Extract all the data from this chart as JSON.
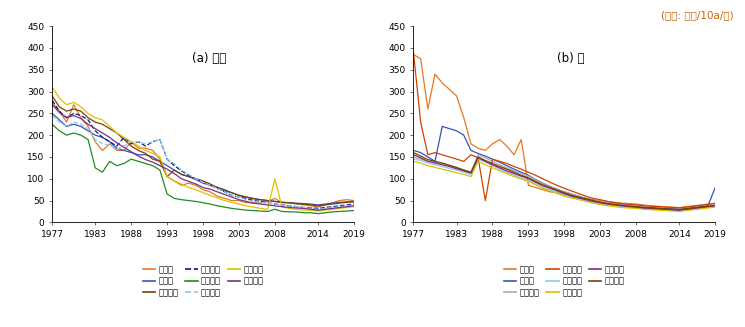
{
  "title_unit": "(단위: 시간/10a/연)",
  "subtitle_a": "(a) 사과",
  "subtitle_b": "(b) 배",
  "years": [
    1977,
    1978,
    1979,
    1980,
    1981,
    1982,
    1983,
    1984,
    1985,
    1986,
    1987,
    1988,
    1989,
    1990,
    1991,
    1992,
    1993,
    1994,
    1995,
    1996,
    1997,
    1998,
    1999,
    2000,
    2001,
    2002,
    2003,
    2004,
    2005,
    2006,
    2007,
    2008,
    2009,
    2010,
    2011,
    2012,
    2013,
    2014,
    2015,
    2016,
    2017,
    2018,
    2019
  ],
  "apple": {
    "강원도": [
      275,
      255,
      230,
      270,
      240,
      220,
      185,
      165,
      180,
      165,
      165,
      185,
      170,
      170,
      165,
      145,
      105,
      95,
      85,
      90,
      85,
      75,
      70,
      60,
      55,
      50,
      50,
      45,
      45,
      45,
      48,
      55,
      45,
      45,
      42,
      40,
      38,
      35,
      40,
      45,
      50,
      52,
      50
    ],
    "경기도": [
      250,
      235,
      220,
      225,
      220,
      210,
      200,
      195,
      185,
      170,
      165,
      160,
      155,
      155,
      150,
      140,
      130,
      120,
      110,
      105,
      98,
      90,
      85,
      80,
      72,
      68,
      62,
      58,
      55,
      52,
      50,
      48,
      46,
      45,
      44,
      43,
      42,
      40,
      42,
      44,
      46,
      47,
      48
    ],
    "경상남도": [
      290,
      265,
      255,
      260,
      255,
      240,
      230,
      225,
      215,
      205,
      190,
      175,
      165,
      158,
      145,
      140,
      105,
      120,
      110,
      105,
      100,
      95,
      88,
      80,
      75,
      68,
      62,
      58,
      54,
      52,
      50,
      48,
      46,
      45,
      43,
      42,
      40,
      38,
      40,
      42,
      44,
      46,
      47
    ],
    "경상북도": [
      280,
      255,
      240,
      250,
      245,
      235,
      210,
      195,
      185,
      175,
      195,
      180,
      185,
      175,
      185,
      190,
      145,
      130,
      118,
      108,
      100,
      92,
      85,
      78,
      70,
      62,
      58,
      55,
      50,
      48,
      45,
      42,
      40,
      38,
      36,
      34,
      33,
      32,
      34,
      36,
      38,
      40,
      42
    ],
    "전라남도": [
      225,
      210,
      200,
      205,
      200,
      190,
      125,
      115,
      140,
      130,
      135,
      145,
      140,
      135,
      130,
      120,
      65,
      55,
      52,
      50,
      48,
      45,
      42,
      38,
      35,
      32,
      30,
      28,
      27,
      26,
      25,
      30,
      25,
      24,
      24,
      22,
      22,
      20,
      22,
      24,
      25,
      26,
      27
    ],
    "전라북도": [
      245,
      230,
      220,
      230,
      225,
      215,
      190,
      180,
      178,
      168,
      175,
      185,
      185,
      180,
      185,
      190,
      145,
      135,
      120,
      110,
      100,
      92,
      85,
      78,
      70,
      62,
      58,
      52,
      48,
      46,
      44,
      42,
      40,
      38,
      36,
      34,
      32,
      30,
      32,
      34,
      36,
      38,
      40
    ],
    "충청남도": [
      310,
      285,
      270,
      275,
      265,
      250,
      240,
      235,
      220,
      205,
      195,
      185,
      175,
      165,
      158,
      150,
      105,
      95,
      88,
      80,
      75,
      68,
      62,
      56,
      50,
      46,
      42,
      38,
      35,
      32,
      30,
      100,
      35,
      32,
      30,
      28,
      28,
      26,
      28,
      30,
      32,
      34,
      36
    ],
    "충청북도": [
      270,
      252,
      240,
      245,
      238,
      225,
      215,
      205,
      195,
      182,
      172,
      162,
      152,
      144,
      138,
      130,
      122,
      112,
      100,
      94,
      88,
      80,
      76,
      70,
      64,
      58,
      52,
      48,
      44,
      42,
      40,
      38,
      36,
      34,
      33,
      32,
      30,
      28,
      30,
      32,
      34,
      36,
      38
    ]
  },
  "pear": {
    "강원도": [
      385,
      375,
      260,
      340,
      320,
      305,
      290,
      240,
      180,
      170,
      165,
      180,
      190,
      175,
      155,
      190,
      85,
      80,
      75,
      70,
      68,
      65,
      62,
      58,
      55,
      52,
      50,
      48,
      46,
      44,
      43,
      42,
      40,
      38,
      37,
      36,
      35,
      34,
      36,
      38,
      40,
      42,
      44
    ],
    "경기도": [
      165,
      160,
      150,
      140,
      220,
      215,
      210,
      200,
      165,
      158,
      152,
      145,
      138,
      130,
      122,
      115,
      108,
      98,
      90,
      82,
      76,
      70,
      65,
      60,
      55,
      50,
      47,
      44,
      42,
      40,
      38,
      37,
      35,
      34,
      33,
      32,
      31,
      30,
      32,
      34,
      36,
      38,
      80
    ],
    "경상남도": [
      150,
      145,
      140,
      138,
      135,
      130,
      125,
      120,
      115,
      155,
      148,
      140,
      132,
      125,
      118,
      112,
      106,
      98,
      90,
      82,
      76,
      70,
      65,
      60,
      55,
      50,
      48,
      45,
      42,
      40,
      38,
      36,
      34,
      32,
      31,
      30,
      29,
      28,
      30,
      32,
      34,
      36,
      38
    ],
    "경상북도": [
      390,
      230,
      155,
      160,
      155,
      150,
      145,
      140,
      155,
      148,
      50,
      145,
      140,
      135,
      128,
      122,
      115,
      108,
      100,
      92,
      85,
      78,
      72,
      66,
      60,
      55,
      52,
      48,
      45,
      43,
      41,
      40,
      38,
      37,
      36,
      35,
      34,
      33,
      35,
      37,
      39,
      41,
      43
    ],
    "전라남도": [
      145,
      142,
      136,
      132,
      128,
      124,
      120,
      115,
      110,
      145,
      138,
      130,
      122,
      115,
      108,
      102,
      96,
      88,
      80,
      74,
      68,
      62,
      58,
      54,
      50,
      46,
      43,
      40,
      38,
      36,
      35,
      34,
      32,
      31,
      30,
      29,
      28,
      27,
      29,
      31,
      33,
      35,
      37
    ],
    "전라북도": [
      140,
      136,
      130,
      126,
      122,
      118,
      114,
      110,
      105,
      140,
      132,
      125,
      118,
      112,
      105,
      99,
      94,
      86,
      78,
      72,
      66,
      60,
      56,
      52,
      48,
      44,
      41,
      38,
      36,
      34,
      33,
      32,
      30,
      29,
      28,
      27,
      26,
      25,
      27,
      29,
      31,
      33,
      35
    ],
    "충청남도": [
      155,
      148,
      140,
      136,
      132,
      128,
      123,
      118,
      113,
      148,
      140,
      132,
      125,
      118,
      112,
      106,
      100,
      92,
      84,
      78,
      72,
      66,
      60,
      56,
      52,
      48,
      45,
      42,
      40,
      38,
      36,
      35,
      33,
      32,
      31,
      30,
      29,
      28,
      30,
      32,
      34,
      36,
      38
    ],
    "충청북도": [
      160,
      152,
      144,
      140,
      136,
      131,
      126,
      120,
      115,
      150,
      142,
      135,
      128,
      122,
      115,
      108,
      102,
      94,
      86,
      80,
      74,
      68,
      62,
      58,
      54,
      50,
      46,
      43,
      41,
      39,
      37,
      36,
      34,
      33,
      32,
      31,
      30,
      29,
      31,
      33,
      35,
      37,
      39
    ]
  },
  "apple_styles": {
    "강원도": {
      "color": "#E87722",
      "linestyle": "-",
      "linewidth": 0.9
    },
    "경기도": {
      "color": "#3355BB",
      "linestyle": "-",
      "linewidth": 0.9
    },
    "경상남도": {
      "color": "#7B3F00",
      "linestyle": "-",
      "linewidth": 0.9
    },
    "경상북도": {
      "color": "#001F8A",
      "linestyle": "--",
      "linewidth": 0.9
    },
    "전라남도": {
      "color": "#228B22",
      "linestyle": "-",
      "linewidth": 0.9
    },
    "전라북도": {
      "color": "#88CCEE",
      "linestyle": "--",
      "linewidth": 0.9
    },
    "충청남도": {
      "color": "#DDC000",
      "linestyle": "-",
      "linewidth": 0.9
    },
    "충청북도": {
      "color": "#7B2D8B",
      "linestyle": "-",
      "linewidth": 0.9
    }
  },
  "pear_styles": {
    "강원도": {
      "color": "#E87722",
      "linestyle": "-",
      "linewidth": 0.9
    },
    "경기도": {
      "color": "#3355BB",
      "linestyle": "-",
      "linewidth": 0.9
    },
    "경상남도": {
      "color": "#AAAAAA",
      "linestyle": "-",
      "linewidth": 0.9
    },
    "경상북도": {
      "color": "#CC4400",
      "linestyle": "-",
      "linewidth": 0.9
    },
    "전라남도": {
      "color": "#88CCEE",
      "linestyle": "-",
      "linewidth": 0.9
    },
    "전라북도": {
      "color": "#DDC000",
      "linestyle": "-",
      "linewidth": 0.9
    },
    "충청남도": {
      "color": "#7B2D8B",
      "linestyle": "-",
      "linewidth": 0.9
    },
    "충청북도": {
      "color": "#7B3F00",
      "linestyle": "-",
      "linewidth": 0.9
    }
  },
  "ylim": [
    0,
    450
  ],
  "yticks": [
    0,
    50,
    100,
    150,
    200,
    250,
    300,
    350,
    400,
    450
  ],
  "xticks": [
    1977,
    1983,
    1988,
    1993,
    1998,
    2003,
    2008,
    2014,
    2019
  ]
}
